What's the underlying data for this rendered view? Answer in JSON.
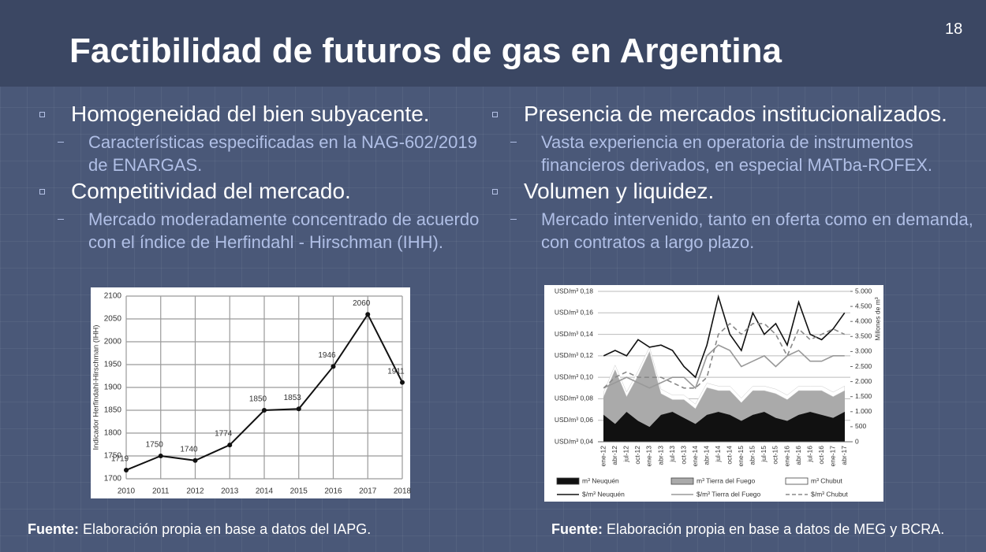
{
  "header": {
    "title": "Factibilidad de futuros de gas en Argentina",
    "page_number": "18"
  },
  "left_column": {
    "items": [
      {
        "text": "Homogeneidad del bien subyacente.",
        "sub": [
          "Características especificadas en la NAG-602/2019 de ENARGAS."
        ]
      },
      {
        "text": "Competitividad del mercado.",
        "sub": [
          "Mercado moderadamente concentrado de acuerdo con el índice de Herfindahl - Hirschman (IHH)."
        ]
      }
    ]
  },
  "right_column": {
    "items": [
      {
        "text": "Presencia de mercados institucionalizados.",
        "sub": [
          "Vasta experiencia en operatoria de instrumentos financieros derivados, en especial MATba-ROFEX."
        ]
      },
      {
        "text": "Volumen y liquidez.",
        "sub": [
          "Mercado intervenido, tanto en oferta como en demanda, con contratos a largo plazo."
        ]
      }
    ]
  },
  "left_chart": {
    "type": "line",
    "y_label": "Indicador Herfindahl-Hirschman (IHH)",
    "x": [
      2010,
      2011,
      2012,
      2013,
      2014,
      2015,
      2016,
      2017,
      2018
    ],
    "values": [
      1719,
      1750,
      1740,
      1774,
      1850,
      1853,
      1946,
      2060,
      1911
    ],
    "color": "#111111",
    "xlim": [
      2010,
      2018
    ],
    "xticks": [
      2010,
      2011,
      2012,
      2013,
      2014,
      2015,
      2016,
      2017,
      2018
    ],
    "ylim": [
      1700,
      2100
    ],
    "yticks": [
      1700,
      1750,
      1800,
      1850,
      1900,
      1950,
      2000,
      2050,
      2100
    ],
    "grid": true
  },
  "right_chart": {
    "type": "combo",
    "y2_label": "Millones de m³",
    "categories": [
      "ene-12",
      "abr-12",
      "jul-12",
      "oct-12",
      "ene-13",
      "abr-13",
      "jul-13",
      "oct-13",
      "ene-14",
      "abr-14",
      "jul-14",
      "oct-14",
      "ene-15",
      "abr-15",
      "jul-15",
      "oct-15",
      "ene-16",
      "abr-16",
      "jul-16",
      "oct-16",
      "ene-17",
      "abr-17"
    ],
    "ylim": [
      0.04,
      0.18
    ],
    "yticks": [
      {
        "value": 0.04,
        "label": "USD/m³ 0,04"
      },
      {
        "value": 0.06,
        "label": "USD/m³ 0,06"
      },
      {
        "value": 0.08,
        "label": "USD/m³ 0,08"
      },
      {
        "value": 0.1,
        "label": "USD/m³ 0,10"
      },
      {
        "value": 0.12,
        "label": "USD/m³ 0,12"
      },
      {
        "value": 0.14,
        "label": "USD/m³ 0,14"
      },
      {
        "value": 0.16,
        "label": "USD/m³ 0,16"
      },
      {
        "value": 0.18,
        "label": "USD/m³ 0,18"
      }
    ],
    "y2lim": [
      0,
      5000
    ],
    "y2ticks": [
      0,
      500,
      {
        "value": 1000,
        "label": "1.000"
      },
      {
        "value": 1500,
        "label": "1.500"
      },
      {
        "value": 2000,
        "label": "2.000"
      },
      {
        "value": 2500,
        "label": "2.500"
      },
      {
        "value": 3000,
        "label": "3.000"
      },
      {
        "value": 3500,
        "label": "3.500"
      },
      {
        "value": 4000,
        "label": "4.000"
      },
      {
        "value": 4500,
        "label": "4.500"
      },
      {
        "value": 5000,
        "label": "5.000"
      }
    ],
    "grid": true,
    "series": [
      {
        "name": "m³ Neuquén",
        "color": "#111111",
        "kind": "area",
        "axis": "y2",
        "values": [
          900,
          600,
          1000,
          700,
          500,
          900,
          1000,
          800,
          600,
          900,
          1000,
          900,
          700,
          900,
          1000,
          800,
          700,
          900,
          1000,
          900,
          800,
          1000
        ]
      },
      {
        "name": "m³ Tierra del Fuego",
        "color": "#aaaaaa",
        "kind": "area",
        "axis": "y2",
        "values": [
          600,
          1800,
          500,
          1500,
          2500,
          700,
          400,
          600,
          500,
          900,
          700,
          800,
          600,
          800,
          700,
          800,
          700,
          800,
          700,
          800,
          700,
          700
        ]
      },
      {
        "name": "m³ Chubut",
        "color": "#ffffff",
        "kind": "area",
        "axis": "y2",
        "values": [
          150,
          150,
          150,
          150,
          150,
          150,
          150,
          150,
          150,
          150,
          150,
          150,
          150,
          150,
          150,
          150,
          150,
          150,
          150,
          150,
          150,
          150
        ]
      },
      {
        "name": "$/m³ Neuquén",
        "color": "#111111",
        "kind": "line",
        "values": [
          0.12,
          0.125,
          0.12,
          0.135,
          0.128,
          0.13,
          0.125,
          0.11,
          0.1,
          0.13,
          0.175,
          0.14,
          0.125,
          0.16,
          0.14,
          0.15,
          0.13,
          0.17,
          0.14,
          0.135,
          0.145,
          0.16
        ]
      },
      {
        "name": "$/m³ Tierra del Fuego",
        "color": "#999999",
        "kind": "line",
        "values": [
          0.09,
          0.095,
          0.1,
          0.095,
          0.09,
          0.095,
          0.1,
          0.1,
          0.09,
          0.12,
          0.13,
          0.125,
          0.11,
          0.115,
          0.12,
          0.11,
          0.12,
          0.125,
          0.115,
          0.115,
          0.12,
          0.12
        ]
      },
      {
        "name": "$/m³ Chubut",
        "color": "#888888",
        "kind": "line",
        "dashed": true,
        "values": [
          0.09,
          0.1,
          0.105,
          0.1,
          0.1,
          0.1,
          0.095,
          0.09,
          0.09,
          0.1,
          0.14,
          0.15,
          0.14,
          0.15,
          0.15,
          0.14,
          0.12,
          0.145,
          0.135,
          0.14,
          0.145,
          0.14
        ]
      }
    ]
  },
  "sources": [
    {
      "label": "Fuente:",
      "text": "Elaboración propia en base a datos del IAPG."
    },
    {
      "label": "Fuente:",
      "text": "Elaboración propia en base a datos de MEG y BCRA."
    }
  ]
}
